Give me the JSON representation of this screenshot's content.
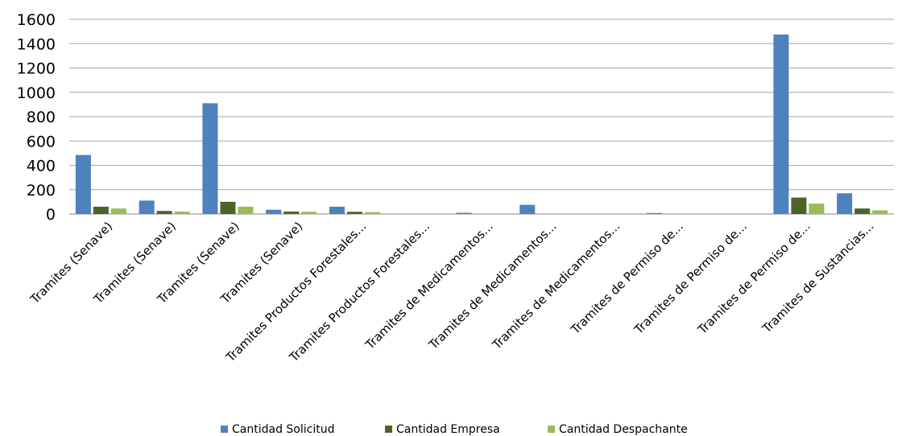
{
  "chart_data": {
    "type": "bar",
    "categories": [
      "Tramites (Senave)",
      "Tramites (Senave)",
      "Tramites (Senave)",
      "Tramites (Senave)",
      "Tramites Productos Forestales...",
      "Tramites Productos Forestales...",
      "Tramites de Medicamentos...",
      "Tramites de Medicamentos...",
      "Tramites de Medicamentos...",
      "Tramites de Permiso de...",
      "Tramites de Permiso de...",
      "Tramites de Permiso de...",
      "Tramites de Sustancias..."
    ],
    "series": [
      {
        "name": "Cantidad Solicitud",
        "color": "#4f81bd",
        "values": [
          485,
          110,
          910,
          35,
          60,
          0,
          10,
          75,
          0,
          8,
          0,
          1475,
          170
        ]
      },
      {
        "name": "Cantidad Empresa",
        "color": "#4f6228",
        "values": [
          60,
          25,
          100,
          20,
          18,
          0,
          0,
          0,
          0,
          0,
          0,
          135,
          45
        ]
      },
      {
        "name": "Cantidad Despachante",
        "color": "#9bbb59",
        "values": [
          45,
          20,
          60,
          18,
          15,
          0,
          0,
          0,
          0,
          0,
          0,
          85,
          30
        ]
      }
    ],
    "ylim": [
      0,
      1600
    ],
    "yticks": [
      0,
      200,
      400,
      600,
      800,
      1000,
      1200,
      1400,
      1600
    ],
    "grid": true,
    "legend": "bottom",
    "title": "",
    "xlabel": "",
    "ylabel": ""
  }
}
